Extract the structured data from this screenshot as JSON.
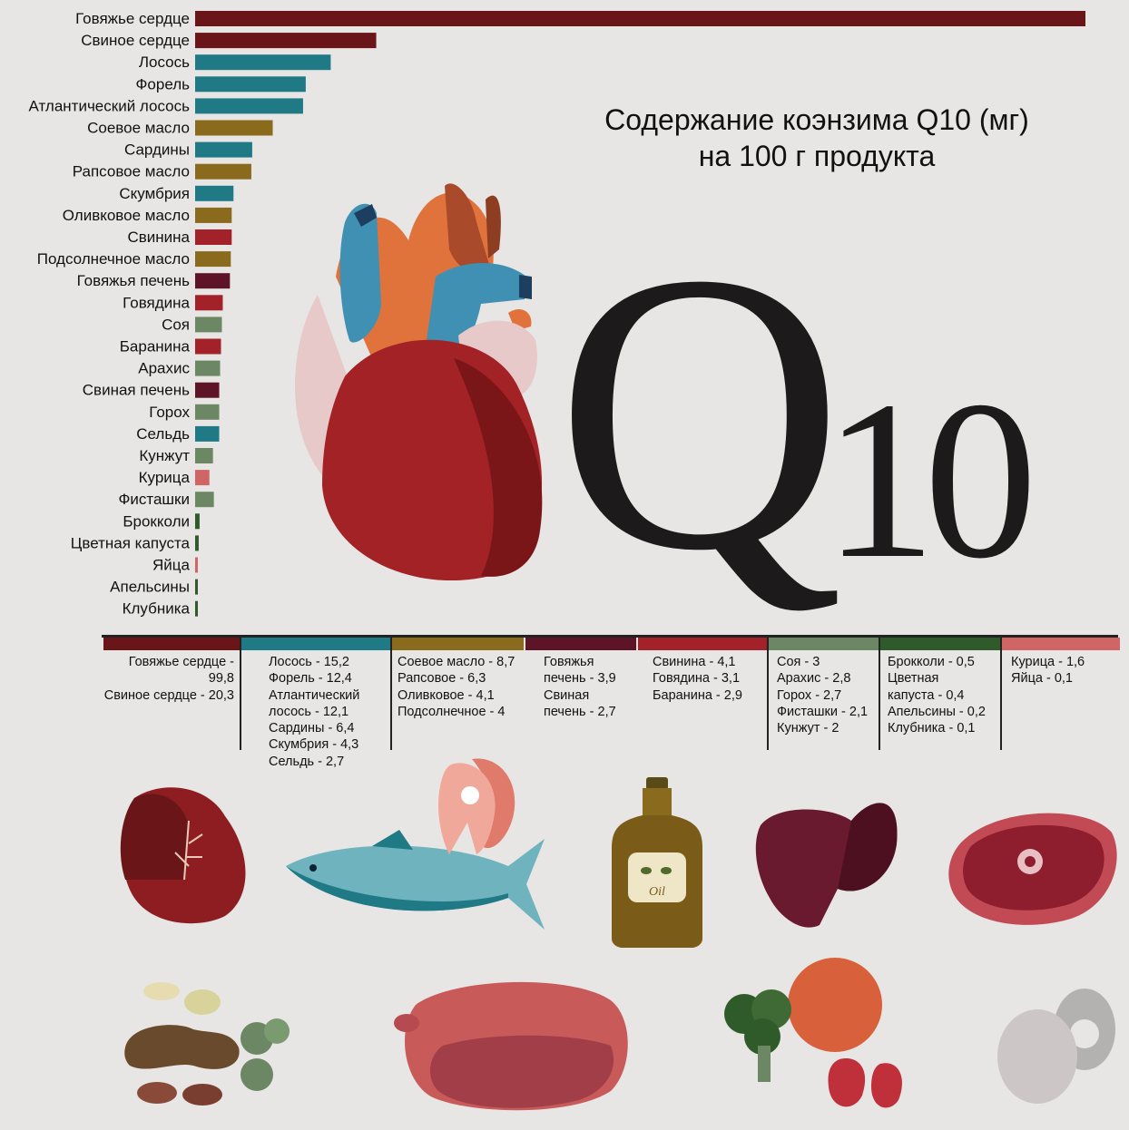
{
  "title": {
    "line1": "Содержание коэнзима Q10 (мг)",
    "line2": "на 100 г продукта"
  },
  "logo": {
    "letter": "Q",
    "number": "10"
  },
  "colors": {
    "heart": "#6a1518",
    "fish": "#1f7a86",
    "oil": "#8a6a1d",
    "liver": "#5c1426",
    "meat": "#a3222a",
    "legume": "#6b8763",
    "veg": "#2f5a2a",
    "poultry": "#d06565"
  },
  "chart_data": {
    "type": "bar",
    "orientation": "horizontal",
    "xlim": [
      0,
      100
    ],
    "categories": [
      "Говяжье сердце",
      "Свиное сердце",
      "Лосось",
      "Форель",
      "Атлантический лосось",
      "Соевое масло",
      "Сардины",
      "Рапсовое масло",
      "Скумбрия",
      "Оливковое масло",
      "Свинина",
      "Подсолнечное масло",
      "Говяжья печень",
      "Говядина",
      "Соя",
      "Баранина",
      "Арахис",
      "Свиная печень",
      "Горох",
      "Сельдь",
      "Кунжут",
      "Курица",
      "Фисташки",
      "Брокколи",
      "Цветная капуста",
      "Яйца",
      "Апельсины",
      "Клубника"
    ],
    "values": [
      99.8,
      20.3,
      15.2,
      12.4,
      12.1,
      8.7,
      6.4,
      6.3,
      4.3,
      4.1,
      4.1,
      4,
      3.9,
      3.1,
      3,
      2.9,
      2.8,
      2.7,
      2.7,
      2.7,
      2,
      1.6,
      2.1,
      0.5,
      0.4,
      0.1,
      0.2,
      0.1
    ],
    "groups": [
      "heart",
      "heart",
      "fish",
      "fish",
      "fish",
      "oil",
      "fish",
      "oil",
      "fish",
      "oil",
      "meat",
      "oil",
      "liver",
      "meat",
      "legume",
      "meat",
      "legume",
      "liver",
      "legume",
      "fish",
      "legume",
      "poultry",
      "legume",
      "veg",
      "veg",
      "poultry",
      "veg",
      "veg"
    ]
  },
  "legend_groups": [
    {
      "key": "heart",
      "items": [
        "Говяжье сердце - 99,8",
        "Свиное сердце - 20,3"
      ]
    },
    {
      "key": "fish",
      "items": [
        "Лосось - 15,2",
        "Форель - 12,4",
        "Атлантический\nлосось - 12,1",
        "Сардины - 6,4",
        "Скумбрия - 4,3",
        "Сельдь - 2,7"
      ]
    },
    {
      "key": "oil",
      "items": [
        "Соевое масло - 8,7",
        "Рапсовое - 6,3",
        "Оливковое - 4,1",
        "Подсолнечное - 4"
      ]
    },
    {
      "key": "liver",
      "items": [
        "Говяжья\nпечень - 3,9",
        "Свиная\nпечень - 2,7"
      ]
    },
    {
      "key": "meat",
      "items": [
        "Свинина - 4,1",
        "Говядина - 3,1",
        "Баранина - 2,9"
      ]
    },
    {
      "key": "legume",
      "items": [
        "Соя - 3",
        "Арахис - 2,8",
        "Горох - 2,7",
        "Фисташки - 2,1",
        "Кунжут - 2"
      ]
    },
    {
      "key": "veg",
      "items": [
        "Брокколи - 0,5",
        "Цветная\nкапуста - 0,4",
        "Апельсины - 0,2",
        "Клубника - 0,1"
      ]
    },
    {
      "key": "poultry",
      "items": [
        "Курица - 1,6",
        "Яйца - 0,1"
      ]
    }
  ],
  "oil_label": "Oil"
}
